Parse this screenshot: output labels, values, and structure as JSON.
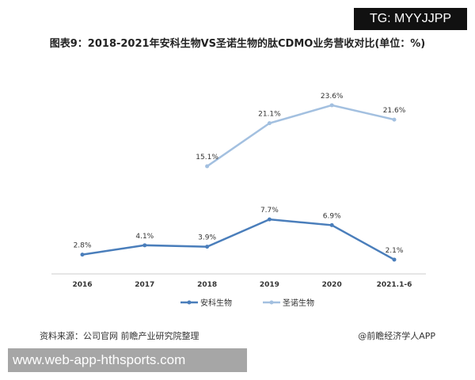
{
  "badge_top": "TG: MYYJJPP",
  "badge_bottom": "www.web-app-hthsports.com",
  "source": "资料来源：公司官网 前瞻产业研究院整理",
  "brand": "@前瞻经济学人APP",
  "chart_data": {
    "type": "line",
    "title": "图表9：2018-2021年安科生物VS圣诺生物的肽CDMO业务营收对比(单位：%)",
    "categories": [
      "2016",
      "2017",
      "2018",
      "2019",
      "2020",
      "2021.1-6"
    ],
    "series": [
      {
        "name": "安科生物",
        "values": [
          2.8,
          4.1,
          3.9,
          7.7,
          6.9,
          2.1
        ],
        "labels": [
          "2.8%",
          "4.1%",
          "3.9%",
          "7.7%",
          "6.9%",
          "2.1%"
        ],
        "color": "#4a7ebb"
      },
      {
        "name": "圣诺生物",
        "values": [
          null,
          null,
          15.1,
          21.1,
          23.6,
          21.6
        ],
        "labels": [
          null,
          null,
          "15.1%",
          "21.1%",
          "23.6%",
          "21.6%"
        ],
        "color": "#a3c0e0"
      }
    ],
    "legend": "bottom",
    "grid": false,
    "ylim": [
      0,
      26
    ]
  }
}
